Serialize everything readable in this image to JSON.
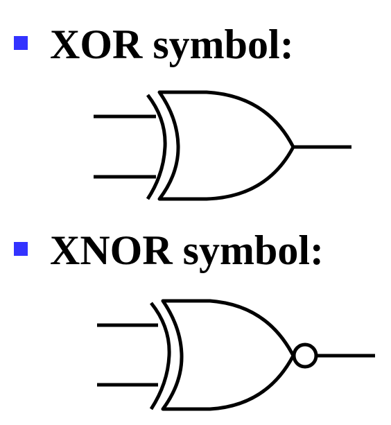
{
  "colors": {
    "bullet": "#3333ff",
    "text": "#000000",
    "line": "#000000",
    "background": "#ffffff"
  },
  "sections": [
    {
      "heading": "XOR symbol:",
      "gate": "xor-gate-icon"
    },
    {
      "heading": "XNOR symbol:",
      "gate": "xnor-gate-icon"
    }
  ]
}
